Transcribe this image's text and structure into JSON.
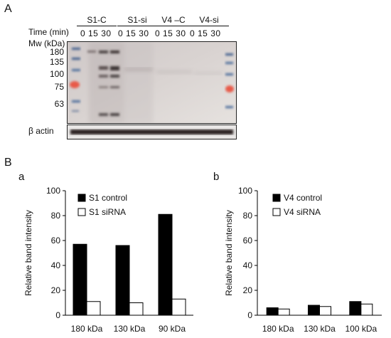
{
  "panel_A": {
    "letter": "A",
    "time_label": "Time (min)",
    "mw_label": "Mw (kDa)",
    "groups": [
      {
        "label": "S1-C",
        "times": "0  15  30"
      },
      {
        "label": "S1-si",
        "times": "0 15 30"
      },
      {
        "label": "V4 –C",
        "times": "0  15 30"
      },
      {
        "label": "V4-si",
        "times": "0  15  30"
      }
    ],
    "mw_markers": [
      "180",
      "135",
      "100",
      "75",
      "63"
    ],
    "actin_label": "β actin"
  },
  "panel_B": {
    "letter": "B",
    "sub_a": "a",
    "sub_b": "b"
  },
  "chart_data": [
    {
      "type": "bar",
      "categories": [
        "180 kDa",
        "130 kDa",
        "90 kDa"
      ],
      "series": [
        {
          "name": "S1 control",
          "values": [
            57,
            56,
            81
          ],
          "color": "#000000"
        },
        {
          "name": "S1 siRNA",
          "values": [
            11,
            10,
            13
          ],
          "color": "#ffffff"
        }
      ],
      "ylabel": "Relative band intensity",
      "ylim": [
        0,
        100
      ],
      "yticks": [
        0,
        20,
        40,
        60,
        80,
        100
      ],
      "grid": false,
      "legend": "top-left"
    },
    {
      "type": "bar",
      "categories": [
        "180 kDa",
        "130 kDa",
        "100 kDa"
      ],
      "series": [
        {
          "name": "V4 control",
          "values": [
            6,
            8,
            11
          ],
          "color": "#000000"
        },
        {
          "name": "V4 siRNA",
          "values": [
            5,
            7,
            9
          ],
          "color": "#ffffff"
        }
      ],
      "ylabel": "Relative band intensity",
      "ylim": [
        0,
        100
      ],
      "yticks": [
        0,
        20,
        40,
        60,
        80,
        100
      ],
      "grid": false,
      "legend": "top-left"
    }
  ]
}
